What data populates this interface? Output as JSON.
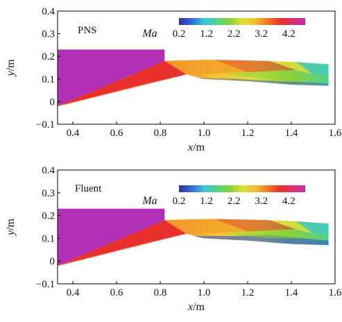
{
  "colors": {
    "frame": "#000000",
    "wedge_top": "#b02fb4",
    "inlet_red": "#e8312c",
    "shock_orange": "#f0a028",
    "subsonic_blue": "#2f4fd8",
    "cyan": "#3ec7d8",
    "green": "#8ad13a",
    "yellow": "#f2e03c"
  },
  "colorbar": {
    "title": "Ma",
    "ticks": [
      "0.2",
      "1.2",
      "2.2",
      "3.2",
      "4.2"
    ],
    "range": [
      0.2,
      4.8
    ],
    "stops": [
      "#3a2ea6",
      "#2f6ad8",
      "#3ec7d8",
      "#52d18a",
      "#8ad13a",
      "#d8e23a",
      "#f5c030",
      "#f07a28",
      "#e8312c",
      "#d8306a",
      "#c02ea8"
    ]
  },
  "chart_data": [
    {
      "type": "heatmap",
      "title": "PNS",
      "xlabel": "x/m",
      "ylabel": "y/m",
      "xlim": [
        0.33,
        1.6
      ],
      "ylim": [
        -0.1,
        0.4
      ],
      "xticks": [
        "0.4",
        "0.6",
        "0.8",
        "1.0",
        "1.2",
        "1.4",
        "1.6"
      ],
      "yticks": [
        "−0.1",
        "0",
        "0.1",
        "0.2",
        "0.3",
        "0.4"
      ],
      "xtick_values": [
        0.4,
        0.6,
        0.8,
        1.0,
        1.2,
        1.4,
        1.6
      ],
      "ytick_values": [
        -0.1,
        0,
        0.1,
        0.2,
        0.3,
        0.4
      ]
    },
    {
      "type": "heatmap",
      "title": "Fluent",
      "xlabel": "x/m",
      "ylabel": "y/m",
      "xlim": [
        0.33,
        1.6
      ],
      "ylim": [
        -0.1,
        0.4
      ],
      "xticks": [
        "0.4",
        "0.6",
        "0.8",
        "1.0",
        "1.2",
        "1.4",
        "1.6"
      ],
      "yticks": [
        "−0.1",
        "0",
        "0.1",
        "0.2",
        "0.3",
        "0.4"
      ],
      "xtick_values": [
        0.4,
        0.6,
        0.8,
        1.0,
        1.2,
        1.4,
        1.6
      ],
      "ytick_values": [
        -0.1,
        0,
        0.1,
        0.2,
        0.3,
        0.4
      ]
    }
  ]
}
